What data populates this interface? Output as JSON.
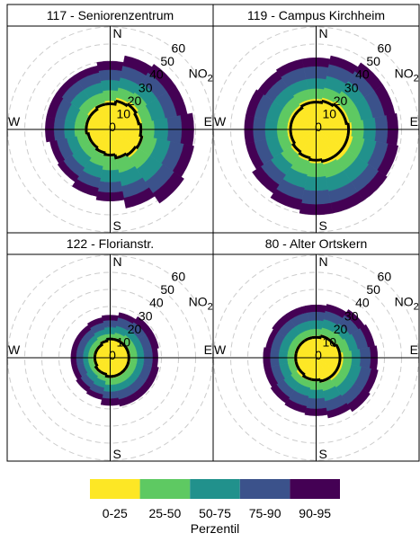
{
  "chart_data": {
    "type": "polar-percentile",
    "directions": [
      0,
      22.5,
      45,
      67.5,
      90,
      112.5,
      135,
      157.5,
      180,
      202.5,
      225,
      247.5,
      270,
      292.5,
      315,
      337.5
    ],
    "compass": [
      "N",
      "E",
      "S",
      "W"
    ],
    "rlim": [
      0,
      60
    ],
    "rticks": [
      0,
      10,
      20,
      30,
      40,
      50,
      60
    ],
    "grid": true,
    "pollutant": "NO",
    "pollutant_sub": "2",
    "legend_title": "Perzentil",
    "bands": [
      {
        "name": "0-25",
        "color": "#fde725"
      },
      {
        "name": "25-50",
        "color": "#5ec962"
      },
      {
        "name": "50-75",
        "color": "#21918c"
      },
      {
        "name": "75-90",
        "color": "#3b528b"
      },
      {
        "name": "90-95",
        "color": "#440154"
      }
    ],
    "panels": [
      {
        "title": "117 - Seniorenzentrum",
        "levels": [
          [
            17,
            19,
            20,
            19,
            19,
            20,
            20,
            18,
            16,
            15,
            14,
            14,
            15,
            15,
            16,
            16
          ],
          [
            23,
            25,
            26,
            25,
            26,
            28,
            28,
            26,
            24,
            22,
            20,
            20,
            21,
            21,
            22,
            22
          ],
          [
            29,
            31,
            33,
            33,
            34,
            36,
            37,
            34,
            31,
            29,
            27,
            26,
            27,
            27,
            28,
            28
          ],
          [
            35,
            38,
            40,
            40,
            42,
            44,
            45,
            41,
            37,
            35,
            33,
            32,
            33,
            33,
            34,
            34
          ],
          [
            40,
            44,
            46,
            46,
            49,
            50,
            52,
            47,
            42,
            40,
            37,
            36,
            38,
            38,
            38,
            38
          ]
        ],
        "line": [
          15,
          17,
          18,
          17,
          18,
          19,
          18,
          17,
          15,
          14,
          13,
          13,
          14,
          14,
          14,
          15
        ]
      },
      {
        "title": "119 - Campus Kirchheim",
        "levels": [
          [
            18,
            19,
            20,
            20,
            21,
            22,
            22,
            21,
            20,
            19,
            18,
            17,
            17,
            17,
            17,
            18
          ],
          [
            24,
            25,
            27,
            27,
            28,
            29,
            29,
            29,
            28,
            27,
            25,
            23,
            23,
            23,
            23,
            24
          ],
          [
            30,
            32,
            34,
            34,
            35,
            36,
            37,
            37,
            36,
            35,
            32,
            30,
            30,
            30,
            30,
            30
          ],
          [
            37,
            39,
            41,
            41,
            42,
            43,
            44,
            44,
            44,
            42,
            39,
            37,
            37,
            37,
            36,
            37
          ],
          [
            42,
            44,
            47,
            47,
            48,
            49,
            50,
            50,
            50,
            48,
            45,
            42,
            42,
            42,
            41,
            42
          ]
        ],
        "line": [
          16,
          17,
          18,
          18,
          19,
          19,
          19,
          19,
          18,
          17,
          16,
          15,
          15,
          15,
          15,
          16
        ]
      },
      {
        "title": "122 - Florianstr.",
        "levels": [
          [
            11,
            12,
            12,
            12,
            12,
            12,
            12,
            12,
            12,
            11,
            11,
            10,
            10,
            10,
            10,
            11
          ],
          [
            14,
            15,
            16,
            16,
            16,
            16,
            16,
            16,
            16,
            14,
            13,
            13,
            13,
            13,
            13,
            14
          ],
          [
            18,
            19,
            20,
            20,
            20,
            20,
            20,
            20,
            20,
            18,
            17,
            16,
            16,
            16,
            16,
            17
          ],
          [
            22,
            24,
            25,
            25,
            25,
            25,
            25,
            25,
            24,
            22,
            21,
            20,
            20,
            20,
            20,
            21
          ],
          [
            25,
            27,
            29,
            29,
            28,
            29,
            29,
            29,
            28,
            25,
            24,
            23,
            23,
            23,
            23,
            24
          ]
        ],
        "line": [
          11,
          11,
          11,
          11,
          11,
          11,
          11,
          11,
          11,
          10,
          10,
          9,
          9,
          9,
          9,
          10
        ]
      },
      {
        "title": "80 - Alter Ortskern",
        "levels": [
          [
            13,
            14,
            14,
            15,
            16,
            16,
            16,
            15,
            14,
            14,
            14,
            13,
            13,
            13,
            13,
            13
          ],
          [
            17,
            18,
            19,
            20,
            21,
            21,
            21,
            20,
            19,
            18,
            18,
            17,
            17,
            17,
            17,
            17
          ],
          [
            22,
            23,
            24,
            25,
            26,
            27,
            27,
            26,
            24,
            23,
            23,
            22,
            22,
            22,
            22,
            22
          ],
          [
            27,
            28,
            30,
            31,
            32,
            33,
            33,
            32,
            30,
            29,
            28,
            27,
            27,
            27,
            27,
            27
          ],
          [
            31,
            32,
            34,
            35,
            36,
            37,
            38,
            36,
            34,
            33,
            32,
            31,
            31,
            30,
            31,
            31
          ]
        ],
        "line": [
          12,
          13,
          13,
          14,
          14,
          14,
          14,
          14,
          13,
          13,
          12,
          12,
          12,
          12,
          12,
          12
        ]
      }
    ]
  }
}
